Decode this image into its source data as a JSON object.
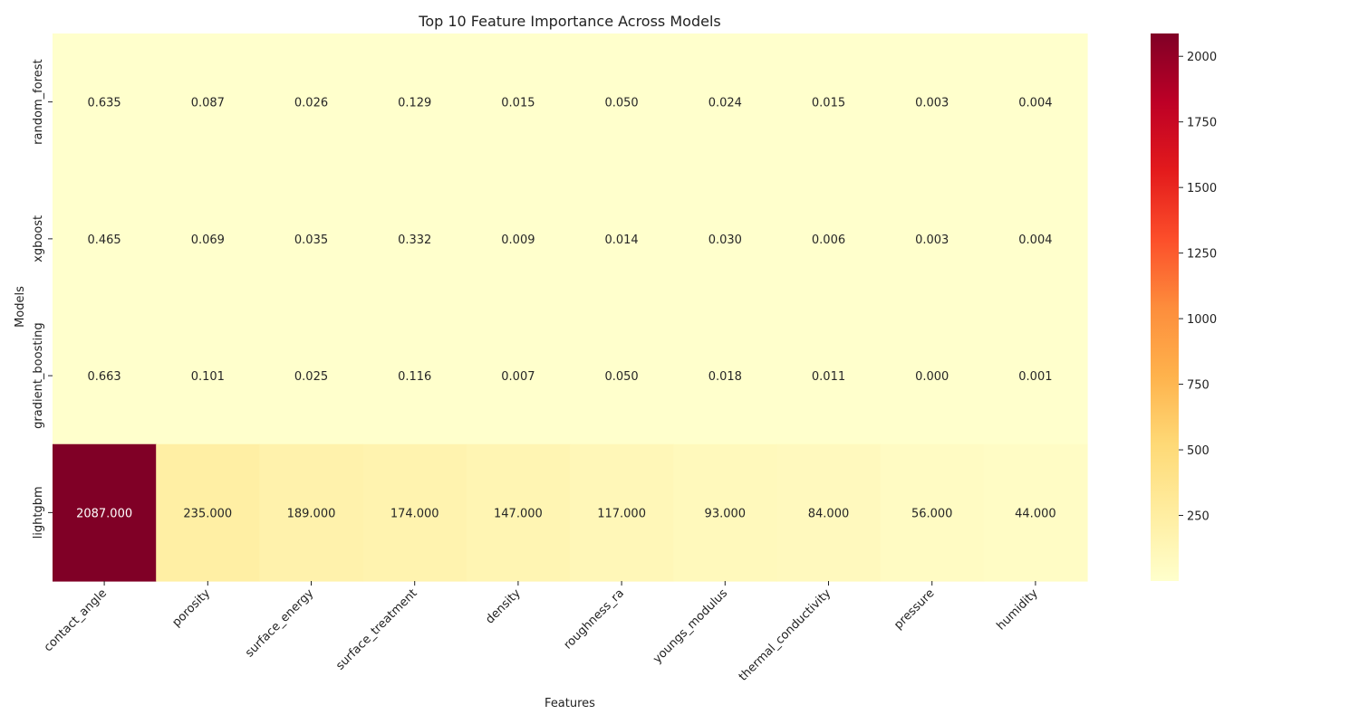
{
  "chart_data": {
    "type": "heatmap",
    "title": "Top 10 Feature Importance Across Models",
    "xlabel": "Features",
    "ylabel": "Models",
    "x_categories": [
      "contact_angle",
      "porosity",
      "surface_energy",
      "surface_treatment",
      "density",
      "roughness_ra",
      "youngs_modulus",
      "thermal_conductivity",
      "pressure",
      "humidity"
    ],
    "y_categories": [
      "random_forest",
      "xgboost",
      "gradient_boosting",
      "lightgbm"
    ],
    "values": [
      [
        0.635,
        0.087,
        0.026,
        0.129,
        0.015,
        0.05,
        0.024,
        0.015,
        0.003,
        0.004
      ],
      [
        0.465,
        0.069,
        0.035,
        0.332,
        0.009,
        0.014,
        0.03,
        0.006,
        0.003,
        0.004
      ],
      [
        0.663,
        0.101,
        0.025,
        0.116,
        0.007,
        0.05,
        0.018,
        0.011,
        0.0,
        0.001
      ],
      [
        2087.0,
        235.0,
        189.0,
        174.0,
        147.0,
        117.0,
        93.0,
        84.0,
        56.0,
        44.0
      ]
    ],
    "value_format": "3 decimals",
    "colormap": "YlOrRd",
    "colormap_stops": [
      "#ffffcc",
      "#ffeda0",
      "#fed976",
      "#feb24c",
      "#fd8d3c",
      "#fc4e2a",
      "#e31a1c",
      "#bd0026",
      "#800026"
    ],
    "color_range": [
      0,
      2087
    ],
    "colorbar_ticks": [
      250,
      500,
      750,
      1000,
      1250,
      1500,
      1750,
      2000
    ],
    "colorbar_position": "right"
  }
}
